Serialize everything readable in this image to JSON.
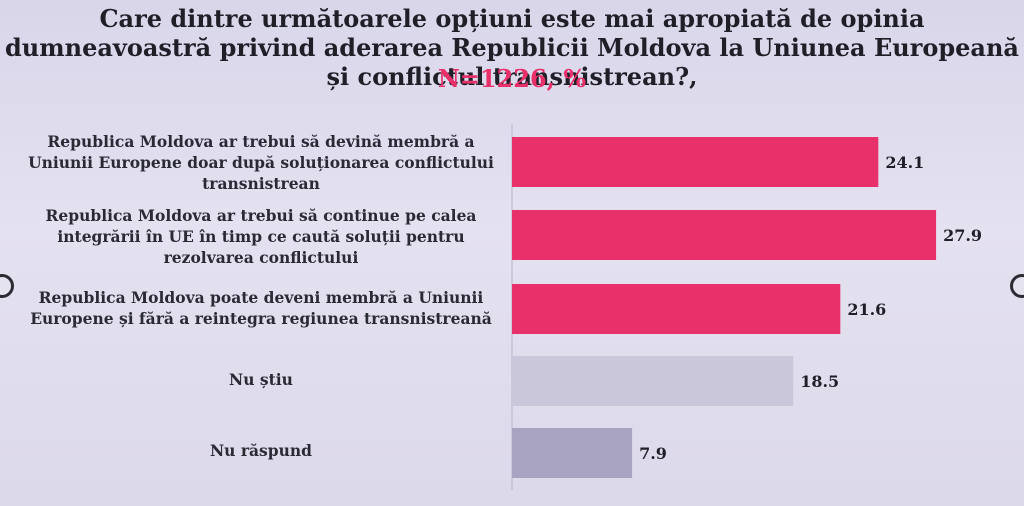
{
  "title": "Care dintre următoarele opțiuni este mai apropiată de opinia dumneavoastră privind aderarea Republicii Moldova la Uniunea Europeană și conflictul transnistrean?,",
  "subtitle": "N=1226, %",
  "chart_data": {
    "type": "bar",
    "orientation": "horizontal",
    "categories": [
      "Republica Moldova ar trebui să devină membră a Uniunii Europene doar după soluționarea conflictului transnistrean",
      "Republica Moldova ar trebui să continue pe calea integrării în UE în timp ce caută soluții pentru rezolvarea conflictului",
      "Republica Moldova poate deveni membră a Uniunii Europene și fără a reintegra regiunea transnistreană",
      "Nu știu",
      "Nu răspund"
    ],
    "values": [
      24.1,
      27.9,
      21.6,
      18.5,
      7.9
    ],
    "value_labels": [
      "24.1",
      "27.9",
      "21.6",
      "18.5",
      "7.9"
    ],
    "colors": [
      "#e8306a",
      "#e8306a",
      "#e8306a",
      "#cbc7da",
      "#a7a3c0"
    ],
    "xlim": [
      0,
      30
    ],
    "grid": false,
    "legend": "none"
  }
}
